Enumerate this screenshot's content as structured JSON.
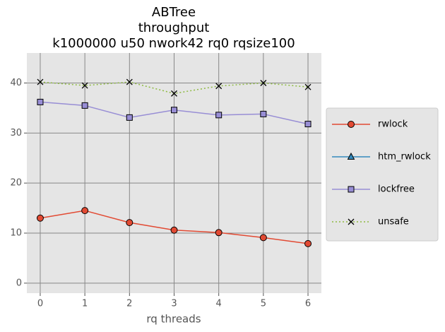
{
  "chart_data": {
    "type": "line",
    "title": [
      "ABTree",
      "throughput",
      "k1000000 u50 nwork42 rq0 rqsize100"
    ],
    "x_label": "rq threads",
    "x": [
      0,
      1,
      2,
      3,
      4,
      5,
      6
    ],
    "xlim": [
      -0.3,
      6.3
    ],
    "xticks": [
      0,
      1,
      2,
      3,
      4,
      5,
      6
    ],
    "ylim": [
      -2,
      46
    ],
    "yticks": [
      0,
      10,
      20,
      30,
      40
    ],
    "grid": true,
    "legend": "outside right",
    "series": [
      {
        "name": "rwlock",
        "color": "#E24A33",
        "marker": "o",
        "linestyle": "solid",
        "values": [
          13.0,
          14.5,
          12.1,
          10.6,
          10.1,
          9.1,
          7.9
        ]
      },
      {
        "name": "htm_rwlock",
        "color": "#348ABD",
        "marker": "^",
        "linestyle": "solid",
        "values": [
          null,
          null,
          null,
          null,
          null,
          null,
          null
        ]
      },
      {
        "name": "lockfree",
        "color": "#988ED5",
        "marker": "s",
        "linestyle": "solid",
        "values": [
          36.2,
          35.5,
          33.1,
          34.6,
          33.6,
          33.8,
          31.8
        ]
      },
      {
        "name": "unsafe",
        "color": "#8EBA42",
        "marker": "x",
        "linestyle": "dotted",
        "values": [
          40.2,
          39.5,
          40.2,
          37.9,
          39.4,
          40.0,
          39.2
        ]
      }
    ]
  }
}
